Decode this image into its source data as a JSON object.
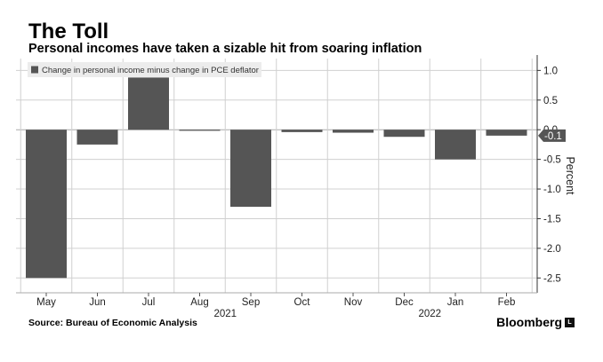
{
  "header": {
    "title": "The Toll",
    "subtitle": "Personal incomes have taken a sizable hit from soaring inflation"
  },
  "footer": {
    "source": "Source: Bureau of Economic Analysis",
    "brand": "Bloomberg",
    "brand_mark": "L"
  },
  "chart_data": {
    "type": "bar",
    "categories": [
      "May",
      "Jun",
      "Jul",
      "Aug",
      "Sep",
      "Oct",
      "Nov",
      "Dec",
      "Jan",
      "Feb"
    ],
    "year_labels": [
      {
        "label": "2021",
        "category": "Sep"
      },
      {
        "label": "2022",
        "category": "Jan"
      }
    ],
    "series": [
      {
        "name": "Change in personal income minus change in PCE deflator",
        "values": [
          -2.5,
          -0.25,
          0.88,
          -0.01,
          -1.3,
          -0.04,
          -0.05,
          -0.12,
          -0.5,
          -0.1
        ]
      }
    ],
    "ylabel": "Percent",
    "ylim": [
      -2.75,
      1.2
    ],
    "yticks": [
      1.0,
      0.5,
      0.0,
      -0.5,
      -1.0,
      -1.5,
      -2.0,
      -2.5
    ],
    "ytick_labels": [
      "1.0",
      "0.5",
      "0.0",
      "-0.5",
      "-1.0",
      "-1.5",
      "-2.0",
      "-2.5"
    ],
    "last_value_label": "-0.1",
    "colors": {
      "bar": "#555555",
      "grid": "#d0d0d0",
      "label_box": "#555555"
    }
  }
}
